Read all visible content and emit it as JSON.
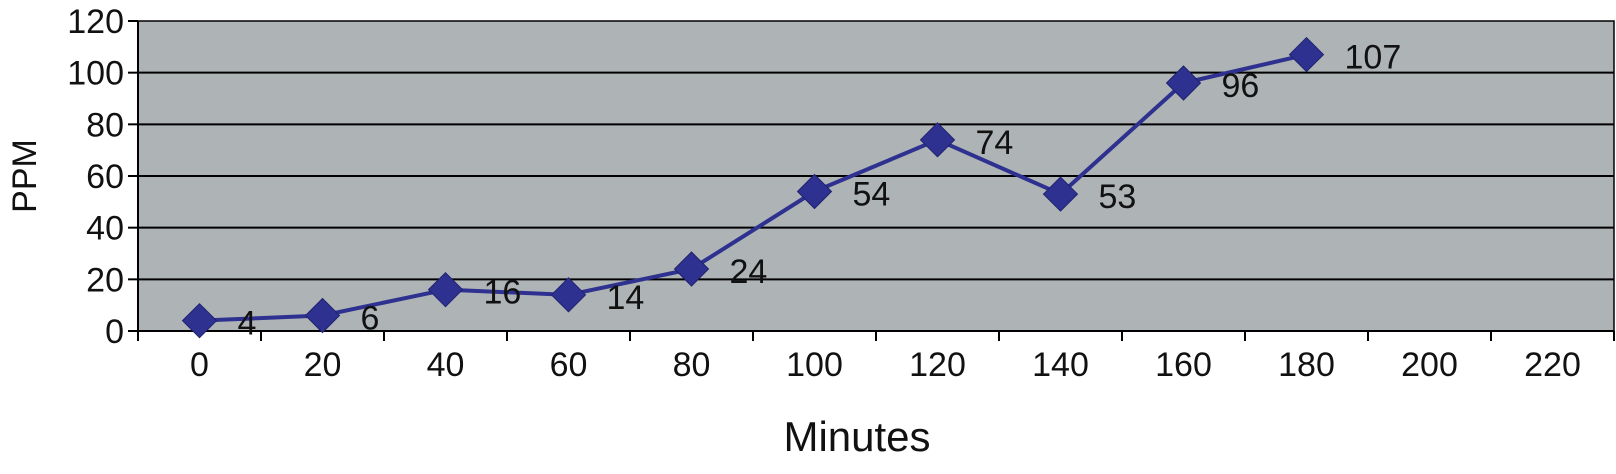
{
  "chart_data": {
    "type": "line",
    "xlabel": "Minutes",
    "ylabel": "PPM",
    "x_ticks": [
      "0",
      "20",
      "40",
      "60",
      "80",
      "100",
      "120",
      "140",
      "160",
      "180",
      "200",
      "220"
    ],
    "y_ticks": [
      "0",
      "20",
      "40",
      "60",
      "80",
      "100",
      "120"
    ],
    "ylim": [
      0,
      120
    ],
    "grid": true,
    "legend": "none",
    "colors": {
      "plot_background": "#aeb3b5",
      "series": "#2e318f",
      "gridline": "#000000"
    },
    "series": [
      {
        "x": [
          0,
          20,
          40,
          60,
          80,
          100,
          120,
          140,
          160,
          180
        ],
        "values": [
          4,
          6,
          16,
          14,
          24,
          54,
          74,
          53,
          96,
          107
        ],
        "labels": [
          "4",
          "6",
          "16",
          "14",
          "24",
          "54",
          "74",
          "53",
          "96",
          "107"
        ]
      }
    ]
  }
}
